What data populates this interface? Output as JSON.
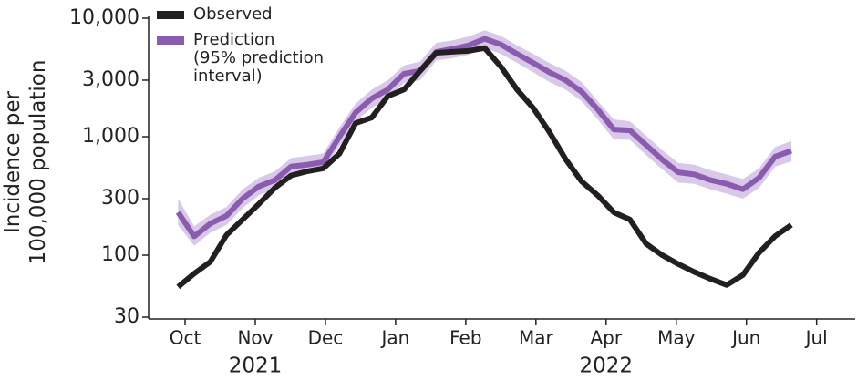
{
  "chart_data": {
    "type": "line",
    "ylabel": "Incidence per\n100,000 population",
    "log_y": true,
    "ylim": [
      30,
      10000
    ],
    "yticks": [
      30,
      100,
      300,
      {
        "value": 1000,
        "label": "1,000"
      },
      {
        "value": 3000,
        "label": "3,000"
      },
      {
        "value": 10000,
        "label": "10,000"
      }
    ],
    "xlim": [
      -0.52,
      9.55
    ],
    "xticks": [
      {
        "value": 0,
        "label": "Oct"
      },
      {
        "value": 1,
        "label": "Nov"
      },
      {
        "value": 2,
        "label": "Dec"
      },
      {
        "value": 3,
        "label": "Jan"
      },
      {
        "value": 4,
        "label": "Feb"
      },
      {
        "value": 5,
        "label": "Mar"
      },
      {
        "value": 6,
        "label": "Apr"
      },
      {
        "value": 7,
        "label": "May"
      },
      {
        "value": 8,
        "label": "Jun"
      },
      {
        "value": 9,
        "label": "Jul"
      }
    ],
    "year_labels": [
      {
        "value": 1,
        "label": "2021"
      },
      {
        "value": 6,
        "label": "2022"
      }
    ],
    "x": [
      -0.1,
      0.13,
      0.36,
      0.59,
      0.82,
      1.05,
      1.28,
      1.51,
      1.74,
      1.97,
      2.2,
      2.43,
      2.66,
      2.89,
      3.12,
      3.35,
      3.58,
      3.81,
      4.04,
      4.27,
      4.5,
      4.73,
      4.96,
      5.19,
      5.42,
      5.65,
      5.88,
      6.11,
      6.34,
      6.57,
      6.8,
      7.03,
      7.26,
      7.49,
      7.72,
      7.95,
      8.18,
      8.41,
      8.64
    ],
    "series": [
      {
        "name": "Observed",
        "color": "#231f20",
        "values": [
          54,
          70,
          88,
          148,
          200,
          270,
          370,
          470,
          510,
          540,
          720,
          1300,
          1450,
          2200,
          2500,
          3600,
          5100,
          5200,
          5300,
          5600,
          3900,
          2500,
          1750,
          1100,
          650,
          420,
          320,
          230,
          200,
          125,
          100,
          84,
          72,
          63,
          56,
          68,
          105,
          145,
          180
        ]
      },
      {
        "name": "Prediction",
        "color": "#8a5cb0",
        "band_color": "#d9c8e8",
        "interval_label": "(95% prediction\ninterval)",
        "values": [
          230,
          144,
          185,
          215,
          300,
          380,
          430,
          560,
          580,
          610,
          1000,
          1600,
          2100,
          2500,
          3400,
          3600,
          5200,
          5500,
          5900,
          6700,
          6000,
          5000,
          4200,
          3500,
          3000,
          2400,
          1700,
          1150,
          1130,
          850,
          640,
          500,
          480,
          430,
          400,
          360,
          450,
          680,
          760
        ],
        "lower": [
          180,
          120,
          155,
          180,
          250,
          320,
          360,
          470,
          490,
          510,
          840,
          1350,
          1750,
          2100,
          2850,
          3000,
          4400,
          4600,
          4900,
          5600,
          5000,
          4200,
          3500,
          2900,
          2500,
          2000,
          1400,
          950,
          940,
          700,
          530,
          410,
          400,
          360,
          330,
          300,
          370,
          560,
          620
        ],
        "upper": [
          300,
          175,
          220,
          255,
          360,
          450,
          510,
          660,
          690,
          720,
          1200,
          1900,
          2500,
          3000,
          4000,
          4300,
          6200,
          6500,
          7000,
          7900,
          7100,
          5900,
          5000,
          4200,
          3600,
          2900,
          2000,
          1400,
          1350,
          1020,
          770,
          600,
          580,
          520,
          480,
          440,
          540,
          820,
          920
        ]
      }
    ]
  }
}
